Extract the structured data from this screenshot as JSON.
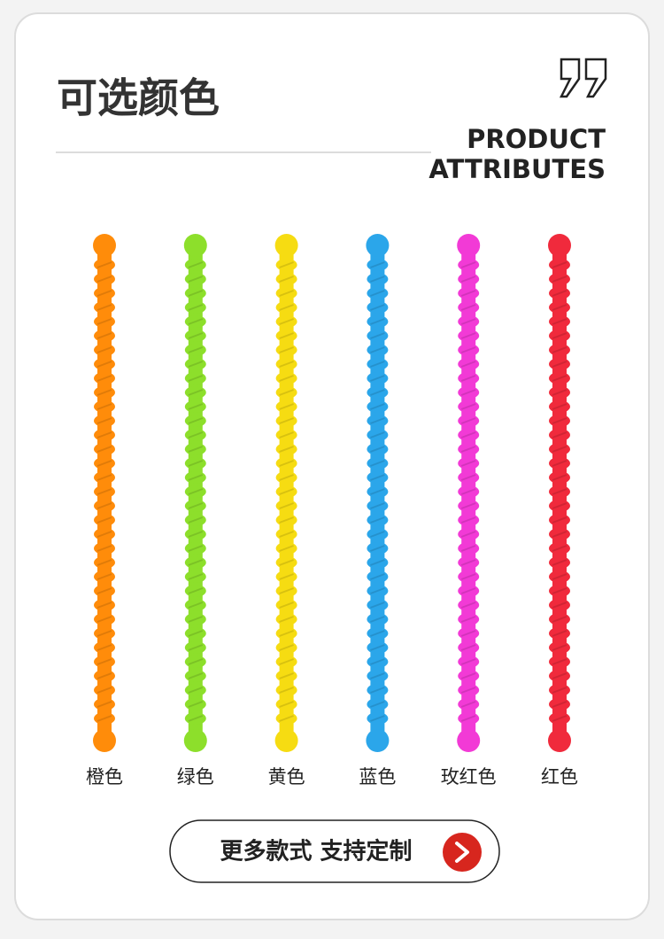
{
  "header": {
    "title": "可选颜色",
    "subtitle_lines": [
      "PRODUCT",
      "ATTRIBUTES"
    ]
  },
  "items": [
    {
      "label": "橙色",
      "color": "#ff8c0a"
    },
    {
      "label": "绿色",
      "color": "#8ddf2b"
    },
    {
      "label": "黄色",
      "color": "#f6dc12"
    },
    {
      "label": "蓝色",
      "color": "#2ba6ea"
    },
    {
      "label": "玫红色",
      "color": "#f23ad6"
    },
    {
      "label": "红色",
      "color": "#f02a3c"
    }
  ],
  "button": {
    "text": "更多款式 支持定制"
  }
}
